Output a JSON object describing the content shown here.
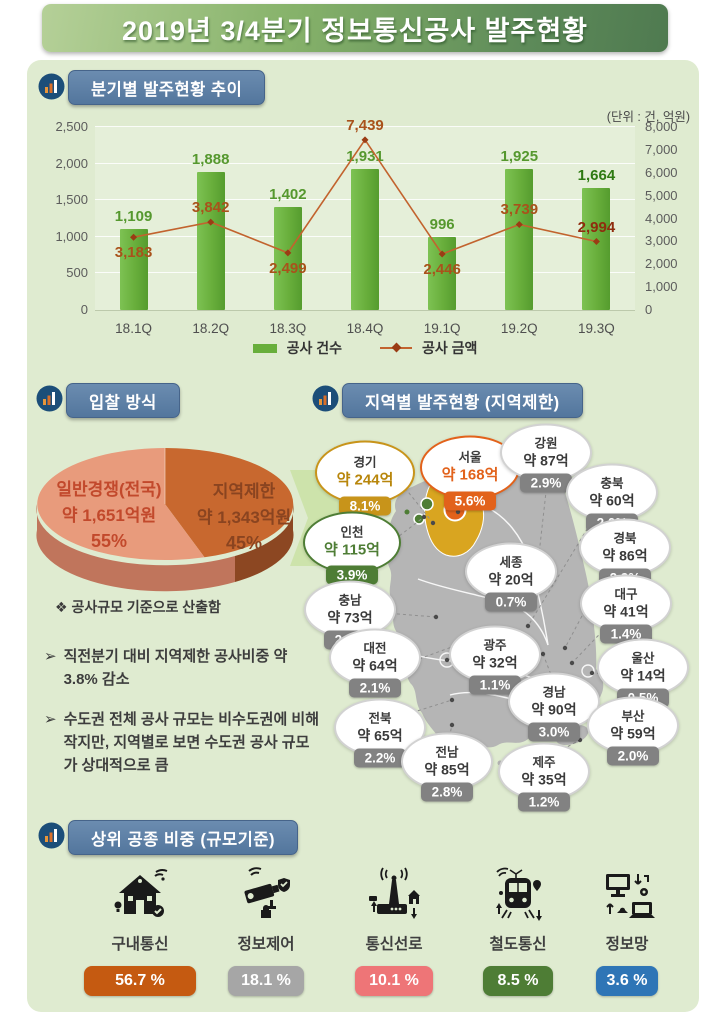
{
  "header": {
    "title": "2019년 3/4분기 정보통신공사 발주현황"
  },
  "icons": {
    "section_header": "bar-chart-icon",
    "top_types": [
      "house-wifi-icon",
      "cctv-camera-icon",
      "antenna-icon",
      "train-icon",
      "network-computers-icon"
    ]
  },
  "chart_data": [
    {
      "id": "quarterly",
      "type": "bar+line",
      "title": "분기별 발주현황 추이",
      "unit": "(단위 : 건, 억원)",
      "categories": [
        "18.1Q",
        "18.2Q",
        "18.3Q",
        "18.4Q",
        "19.1Q",
        "19.2Q",
        "19.3Q"
      ],
      "series": [
        {
          "name": "공사 건수",
          "type": "bar",
          "axis": "left",
          "color": "#68ae3b",
          "values": [
            1109,
            1888,
            1402,
            1931,
            996,
            1925,
            1664
          ],
          "labels": [
            "1,109",
            "1,888",
            "1,402",
            "1,931",
            "996",
            "1,925",
            "1,664"
          ]
        },
        {
          "name": "공사 금액",
          "type": "line",
          "axis": "right",
          "color": "#c2632e",
          "values": [
            3183,
            3842,
            2499,
            7439,
            2446,
            3739,
            2994
          ],
          "labels": [
            "3,183",
            "3,842",
            "2,499",
            "7,439",
            "2,446",
            "3,739",
            "2,994"
          ],
          "label_pos": [
            "below",
            "above",
            "below",
            "above",
            "below",
            "above",
            "above"
          ]
        }
      ],
      "left_axis": {
        "min": 0,
        "max": 2500,
        "ticks": [
          "0",
          "500",
          "1,000",
          "1,500",
          "2,000",
          "2,500"
        ]
      },
      "right_axis": {
        "min": 0,
        "max": 8000,
        "ticks": [
          "0",
          "1,000",
          "2,000",
          "3,000",
          "4,000",
          "5,000",
          "6,000",
          "7,000",
          "8,000"
        ]
      },
      "grid": true,
      "legend_position": "bottom"
    },
    {
      "id": "bidding",
      "type": "pie",
      "title": "입찰 방식",
      "slices": [
        {
          "label": "일반경쟁(전국)",
          "amount": "약 1,651억원",
          "pct": "55%",
          "value": 55,
          "color": "#e89b7c"
        },
        {
          "label": "지역제한",
          "amount": "약 1,343억원",
          "pct": "45%",
          "value": 45,
          "color": "#c8682f"
        }
      ],
      "footnote": "❖ 공사규모 기준으로 산출함"
    },
    {
      "id": "regional",
      "type": "map",
      "title": "지역별 발주현황 (지역제한)",
      "regions": [
        {
          "name": "경기",
          "amount": "약 244억",
          "pct": "8.1%",
          "theme": "gold"
        },
        {
          "name": "서울",
          "amount": "약 168억",
          "pct": "5.6%",
          "theme": "orange"
        },
        {
          "name": "강원",
          "amount": "약 87억",
          "pct": "2.9%",
          "theme": "gray"
        },
        {
          "name": "충북",
          "amount": "약 60억",
          "pct": "2.0%",
          "theme": "gray"
        },
        {
          "name": "인천",
          "amount": "약 115억",
          "pct": "3.9%",
          "theme": "green"
        },
        {
          "name": "경북",
          "amount": "약 86억",
          "pct": "2.9%",
          "theme": "gray"
        },
        {
          "name": "세종",
          "amount": "약 20억",
          "pct": "0.7%",
          "theme": "gray"
        },
        {
          "name": "충남",
          "amount": "약 73억",
          "pct": "2.4%",
          "theme": "gray"
        },
        {
          "name": "대구",
          "amount": "약 41억",
          "pct": "1.4%",
          "theme": "gray"
        },
        {
          "name": "대전",
          "amount": "약 64억",
          "pct": "2.1%",
          "theme": "gray"
        },
        {
          "name": "광주",
          "amount": "약 32억",
          "pct": "1.1%",
          "theme": "gray"
        },
        {
          "name": "울산",
          "amount": "약 14억",
          "pct": "0.5%",
          "theme": "gray"
        },
        {
          "name": "경남",
          "amount": "약 90억",
          "pct": "3.0%",
          "theme": "gray"
        },
        {
          "name": "전북",
          "amount": "약 65억",
          "pct": "2.2%",
          "theme": "gray"
        },
        {
          "name": "부산",
          "amount": "약 59억",
          "pct": "2.0%",
          "theme": "gray"
        },
        {
          "name": "전남",
          "amount": "약 85억",
          "pct": "2.8%",
          "theme": "gray"
        },
        {
          "name": "제주",
          "amount": "약 35억",
          "pct": "1.2%",
          "theme": "gray"
        }
      ],
      "map_colors": {
        "base": "#b5b5b5",
        "gyeonggi": "#d9a520",
        "seoul": "#e2621b",
        "incheon": "#4e7d35"
      }
    },
    {
      "id": "top-types",
      "type": "bar",
      "title": "상위 공종 비중 (규모기준)",
      "categories": [
        "구내통신",
        "정보제어",
        "통신선로",
        "철도통신",
        "정보망"
      ],
      "values": [
        56.7,
        18.1,
        10.1,
        8.5,
        3.6
      ],
      "labels": [
        "56.7 %",
        "18.1 %",
        "10.1 %",
        "8.5 %",
        "3.6 %"
      ],
      "colors": [
        "#c55a11",
        "#a6a6a6",
        "#ee7577",
        "#4e7d35",
        "#2e75b6"
      ]
    }
  ],
  "notes": {
    "items": [
      "직전분기 대비 지역제한 공사비중 약 3.8% 감소",
      "수도권 전체 공사 규모는 비수도권에 비해 작지만, 지역별로 보면 수도권 공사 규모가 상대적으로 큼"
    ],
    "marker": "➢"
  }
}
